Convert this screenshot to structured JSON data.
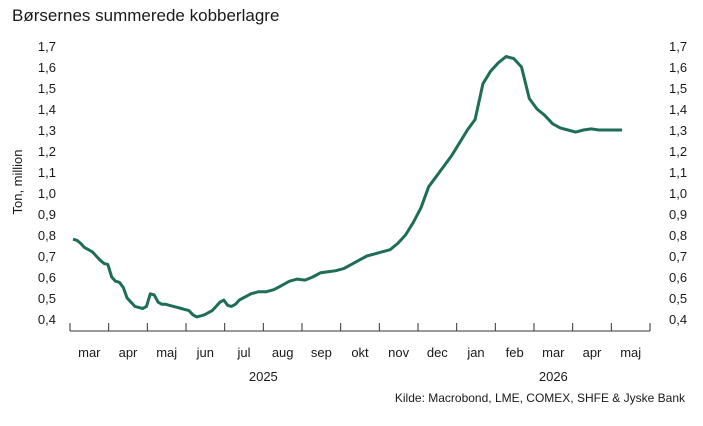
{
  "chart_data": {
    "type": "line",
    "title": "Børsernes summerede kobberlagre",
    "ylabel": "Ton, million",
    "source": "Kilde: Macrobond, LME, COMEX, SHFE & Jyske Bank",
    "ylim": [
      0.4,
      1.7
    ],
    "yticks": [
      "0,4",
      "0,5",
      "0,6",
      "0,7",
      "0,8",
      "0,9",
      "1,0",
      "1,1",
      "1,2",
      "1,3",
      "1,4",
      "1,5",
      "1,6",
      "1,7"
    ],
    "months": [
      "mar",
      "apr",
      "maj",
      "jun",
      "jul",
      "aug",
      "sep",
      "okt",
      "nov",
      "dec",
      "jan",
      "feb",
      "mar",
      "apr",
      "maj"
    ],
    "years": [
      {
        "label": "2025",
        "month_index": 4.5
      },
      {
        "label": "2026",
        "month_index": 12
      }
    ],
    "grid": false,
    "line_color": "#1e6e57",
    "series": [
      {
        "x": [
          0,
          0.1,
          0.2,
          0.3,
          0.4,
          0.5,
          0.6,
          0.7,
          0.8,
          0.9,
          1.0,
          1.1,
          1.2,
          1.3,
          1.4,
          1.5,
          1.6,
          1.7,
          1.8,
          1.9,
          2.0,
          2.1,
          2.2,
          2.3,
          2.4,
          2.5,
          2.6,
          2.7,
          2.8,
          2.9,
          3.0,
          3.1,
          3.2,
          3.3,
          3.4,
          3.5,
          3.6,
          3.7,
          3.8,
          3.9,
          4.0,
          4.1,
          4.2,
          4.3,
          4.4,
          4.5,
          4.6,
          4.7,
          4.8,
          4.9,
          5.0,
          5.2,
          5.4,
          5.6,
          5.8,
          6.0,
          6.2,
          6.4,
          6.6,
          6.8,
          7.0,
          7.2,
          7.4,
          7.6,
          7.8,
          8.0,
          8.2,
          8.4,
          8.6,
          8.8,
          9.0,
          9.2,
          9.4,
          9.6,
          9.8,
          10.0,
          10.2,
          10.4,
          10.6,
          10.8,
          11.0,
          11.2,
          11.4,
          11.6,
          11.8,
          12.0,
          12.2,
          12.4,
          12.6,
          12.8,
          13.0,
          13.2,
          13.4,
          13.6,
          13.8,
          14.0,
          14.2
        ],
        "y": [
          0.78,
          0.775,
          0.76,
          0.74,
          0.73,
          0.72,
          0.7,
          0.68,
          0.665,
          0.66,
          0.6,
          0.58,
          0.575,
          0.55,
          0.5,
          0.48,
          0.46,
          0.455,
          0.45,
          0.46,
          0.52,
          0.515,
          0.48,
          0.47,
          0.47,
          0.465,
          0.46,
          0.455,
          0.45,
          0.445,
          0.44,
          0.42,
          0.41,
          0.415,
          0.42,
          0.43,
          0.44,
          0.46,
          0.48,
          0.49,
          0.465,
          0.46,
          0.47,
          0.49,
          0.5,
          0.51,
          0.52,
          0.525,
          0.53,
          0.53,
          0.53,
          0.54,
          0.56,
          0.58,
          0.59,
          0.585,
          0.6,
          0.62,
          0.625,
          0.63,
          0.64,
          0.66,
          0.68,
          0.7,
          0.71,
          0.72,
          0.73,
          0.76,
          0.8,
          0.86,
          0.93,
          1.03,
          1.08,
          1.13,
          1.18,
          1.24,
          1.3,
          1.35,
          1.52,
          1.58,
          1.62,
          1.65,
          1.64,
          1.6,
          1.45,
          1.4,
          1.37,
          1.33,
          1.31,
          1.3,
          1.29,
          1.3,
          1.305,
          1.3,
          1.3,
          1.3,
          1.3
        ]
      }
    ]
  }
}
